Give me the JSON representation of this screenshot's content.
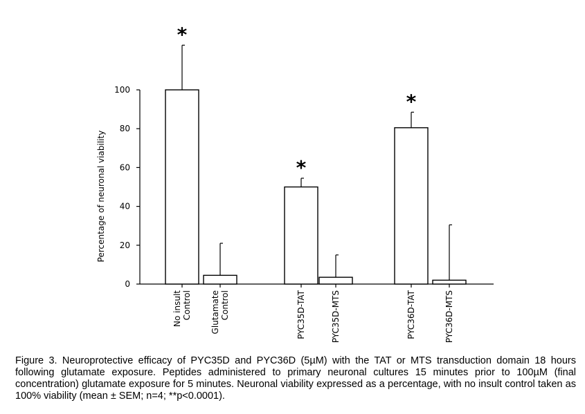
{
  "chart_data": {
    "type": "bar",
    "ylabel": "Percentage of neuronal viability",
    "ylim": [
      0,
      100
    ],
    "yticks": [
      "0",
      "20",
      "40",
      "60",
      "80",
      "100"
    ],
    "categories": [
      [
        "No insult",
        "Control"
      ],
      [
        "Glutamate",
        "Control"
      ],
      [
        "PYC35D-TAT"
      ],
      [
        "PYC35D-MTS"
      ],
      [
        "PYC36D-TAT"
      ],
      [
        "PYC36D-MTS"
      ]
    ],
    "values": [
      100,
      4.5,
      50,
      3.5,
      80.5,
      2
    ],
    "errors": [
      23,
      16.5,
      4.5,
      11.5,
      8,
      28.5
    ],
    "significance": [
      "*",
      "",
      "*",
      "",
      "*",
      ""
    ],
    "grid": false
  },
  "caption": "Figure 3.  Neuroprotective efficacy of PYC35D and PYC36D (5µM) with the TAT or MTS transduction domain 18 hours following glutamate exposure.  Peptides administered to primary neuronal cultures 15 minutes prior to 100µM (final concentration) glutamate exposure for 5 minutes.  Neuronal viability expressed as a percentage, with no insult control taken as 100% viability (mean ± SEM; n=4; **p<0.0001)."
}
